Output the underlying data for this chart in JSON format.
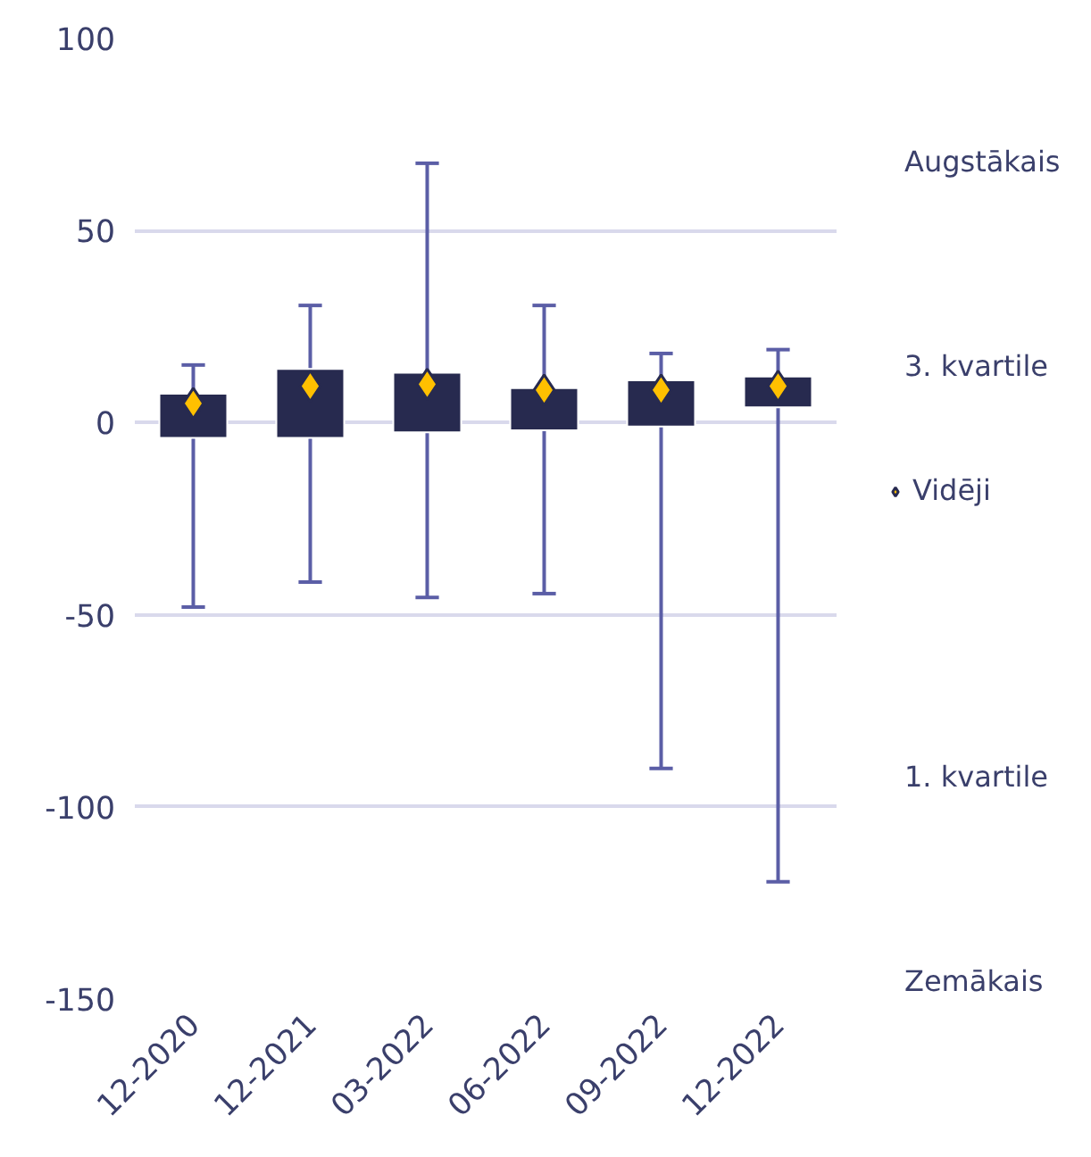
{
  "chart_data": {
    "type": "box",
    "categories": [
      "12-2020",
      "12-2021",
      "03-2022",
      "06-2022",
      "09-2022",
      "12-2022"
    ],
    "series": [
      {
        "color": "#272a4f",
        "boxes": [
          {
            "low": -48,
            "q1": -4,
            "q3": 7.5,
            "high": 15
          },
          {
            "low": -41.5,
            "q1": -4,
            "q3": 14,
            "high": 30.5
          },
          {
            "low": -45.5,
            "q1": -2.5,
            "q3": 13,
            "high": 67.5
          },
          {
            "low": -44.5,
            "q1": -2,
            "q3": 9,
            "high": 30.5
          },
          {
            "low": -90,
            "q1": -1,
            "q3": 11,
            "high": 18
          },
          {
            "low": -119.5,
            "q1": 4,
            "q3": 12,
            "high": 19
          }
        ]
      },
      {
        "type": "scatter",
        "name": "Vidēji",
        "color": "#ffc000",
        "marker": "diamond",
        "x": [
          "12-2020",
          "12-2021",
          "03-2022",
          "06-2022",
          "09-2022",
          "12-2022"
        ],
        "values": [
          5,
          9.5,
          10,
          8.5,
          8.5,
          9.5
        ]
      }
    ],
    "ylim": [
      -150,
      100
    ],
    "yticks": [
      {
        "value": -150,
        "label": "-150"
      },
      {
        "value": -100,
        "label": "-100"
      },
      {
        "value": -50,
        "label": "-50"
      },
      0,
      50,
      100
    ],
    "grid": "y",
    "legend": "right",
    "annotations": [
      "Augstākais",
      "3. kvartile",
      "1. kvartile",
      "Zemākais"
    ]
  }
}
